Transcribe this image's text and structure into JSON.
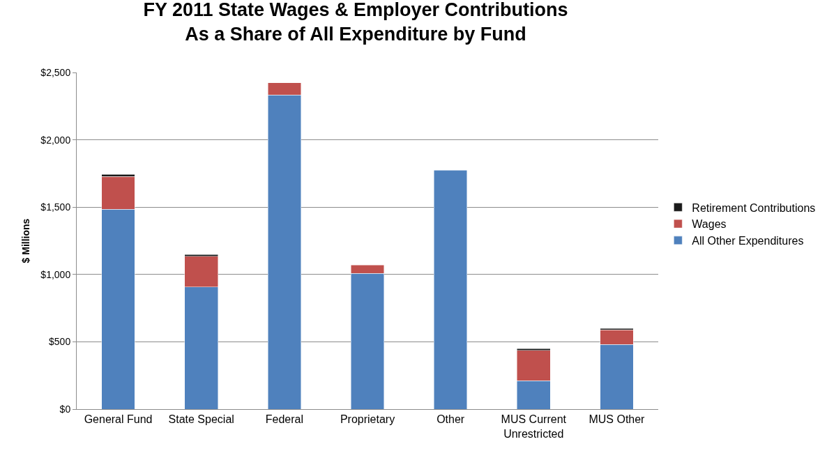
{
  "chart_data": {
    "type": "bar",
    "title": "FY 2011 State Wages & Employer Contributions\nAs a Share of All Expenditure by Fund",
    "ylabel": "$ Millions",
    "categories": [
      "General Fund",
      "State Special",
      "Federal",
      "Proprietary",
      "Other",
      "MUS Current\nUnrestricted",
      "MUS Other"
    ],
    "stacked": true,
    "series": [
      {
        "name": "All Other Expenditures",
        "color": "#4f81bd",
        "values": [
          1485,
          907,
          2334,
          1008,
          1775,
          212,
          481
        ]
      },
      {
        "name": "Wages",
        "color": "#c0504d",
        "values": [
          242,
          228,
          90,
          62,
          null,
          223,
          109
        ]
      },
      {
        "name": "Retirement Contributions",
        "color": "#1a1a1a",
        "values": [
          16,
          12,
          null,
          null,
          null,
          15,
          10
        ]
      }
    ],
    "ylim": [
      0,
      2500
    ],
    "yticks": [
      {
        "value": 0,
        "label": "$0"
      },
      {
        "value": 500,
        "label": "$500"
      },
      {
        "value": 1000,
        "label": "$1,000"
      },
      {
        "value": 1500,
        "label": "$1,500"
      },
      {
        "value": 2000,
        "label": "$2,000"
      },
      {
        "value": 2500,
        "label": "$2,500"
      }
    ],
    "grid": "y",
    "legend": "right"
  }
}
